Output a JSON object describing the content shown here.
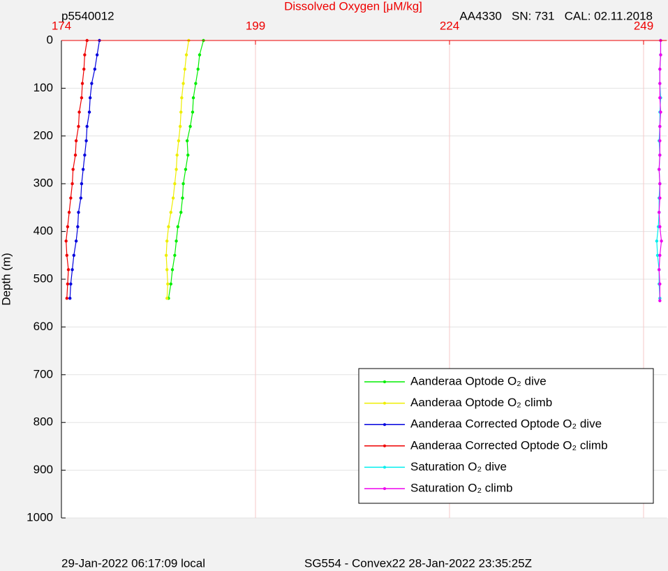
{
  "chart_data": {
    "type": "scatter",
    "title": "Dissolved Oxygen [μM/kg]",
    "left_note": "p5540012",
    "right_note": "AA4330   SN: 731   CAL: 02.11.2018",
    "ylabel": "Depth (m)",
    "footer_left": "29-Jan-2022 06:17:09 local",
    "footer_right": "SG554 - Convex22 28-Jan-2022 23:35:25Z",
    "xlim": [
      174,
      252
    ],
    "xticks": [
      174,
      199,
      224,
      249
    ],
    "ylim": [
      0,
      1000
    ],
    "yticks": [
      0,
      100,
      200,
      300,
      400,
      500,
      600,
      700,
      800,
      900,
      1000
    ],
    "y_reversed": true,
    "grid": true,
    "legend": "lower right",
    "series": [
      {
        "name": "Aanderaa Optode O₂ dive",
        "color": "#00ee00",
        "x": [
          192.3,
          191.8,
          191.6,
          191.3,
          191.0,
          190.9,
          190.6,
          190.2,
          190.3,
          190.0,
          189.7,
          189.6,
          189.4,
          189.0,
          188.8,
          188.6,
          188.3,
          188.1,
          187.8
        ],
        "y": [
          0,
          30,
          60,
          90,
          120,
          150,
          180,
          210,
          240,
          270,
          300,
          330,
          360,
          390,
          420,
          450,
          480,
          510,
          540
        ]
      },
      {
        "name": "Aanderaa Optode O₂ climb",
        "color": "#eeee00",
        "x": [
          190.4,
          190.1,
          189.9,
          189.7,
          189.5,
          189.4,
          189.3,
          189.1,
          188.9,
          188.8,
          188.6,
          188.4,
          188.1,
          187.8,
          187.6,
          187.5,
          187.6,
          187.7,
          187.6
        ],
        "y": [
          0,
          30,
          60,
          90,
          120,
          150,
          180,
          210,
          240,
          270,
          300,
          330,
          360,
          390,
          420,
          450,
          480,
          510,
          540
        ]
      },
      {
        "name": "Aanderaa Corrected Optode O₂ dive",
        "color": "#0000dd",
        "x": [
          178.9,
          178.6,
          178.3,
          177.9,
          177.7,
          177.6,
          177.3,
          177.2,
          177.0,
          176.8,
          176.6,
          176.5,
          176.2,
          176.1,
          175.9,
          175.6,
          175.4,
          175.2,
          175.1
        ],
        "y": [
          0,
          30,
          60,
          90,
          120,
          150,
          180,
          210,
          240,
          270,
          300,
          330,
          360,
          390,
          420,
          450,
          480,
          510,
          540
        ]
      },
      {
        "name": "Aanderaa Corrected Optode O₂ climb",
        "color": "#ee0000",
        "x": [
          177.3,
          177.0,
          176.9,
          176.7,
          176.6,
          176.3,
          176.2,
          175.9,
          175.8,
          175.5,
          175.4,
          175.2,
          175.0,
          174.8,
          174.6,
          174.7,
          174.9,
          174.8,
          174.7
        ],
        "y": [
          0,
          30,
          60,
          90,
          120,
          150,
          180,
          210,
          240,
          270,
          300,
          330,
          360,
          390,
          420,
          450,
          480,
          510,
          540
        ]
      },
      {
        "name": "Saturation O₂ dive",
        "color": "#00eeee",
        "x": [
          251.2,
          251.2,
          251.1,
          251.1,
          251.2,
          251.1,
          251.1,
          251.0,
          251.1,
          251.0,
          251.1,
          251.0,
          251.0,
          250.9,
          250.7,
          250.8,
          251.0,
          251.0,
          251.1
        ],
        "y": [
          0,
          30,
          60,
          90,
          120,
          150,
          180,
          210,
          240,
          270,
          300,
          330,
          360,
          390,
          420,
          450,
          480,
          510,
          540
        ]
      },
      {
        "name": "Saturation O₂ climb",
        "color": "#ee00ee",
        "x": [
          251.2,
          251.2,
          251.1,
          251.1,
          251.1,
          251.2,
          251.1,
          251.1,
          251.1,
          251.0,
          251.1,
          251.1,
          251.0,
          251.1,
          251.3,
          251.1,
          251.0,
          251.1,
          251.1
        ],
        "y": [
          0,
          30,
          60,
          90,
          120,
          150,
          180,
          210,
          240,
          270,
          300,
          330,
          360,
          390,
          420,
          450,
          480,
          510,
          545
        ]
      }
    ]
  }
}
